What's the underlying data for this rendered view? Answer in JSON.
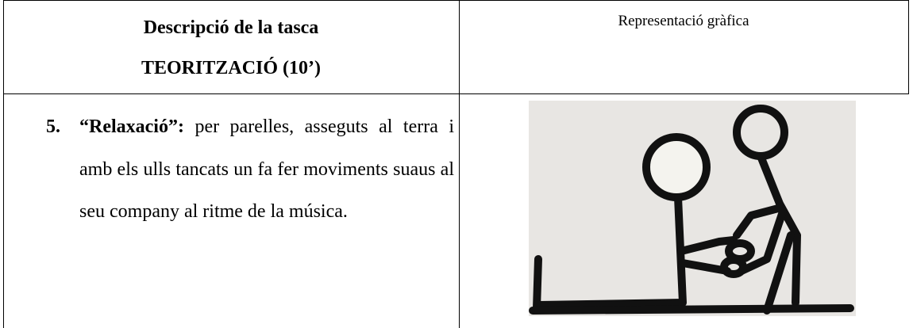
{
  "header": {
    "left_title": [
      "Descripció  de la tasca",
      "TEORITZACIÓ (10’)"
    ],
    "right_title": "Representació gràfica"
  },
  "body": {
    "item": {
      "number": "5.",
      "label": "“Relaxació”:",
      "text": "per parelles, asseguts al terra i amb els ulls tancats un fa fer moviments suaus al seu company al ritme de la música."
    }
  }
}
